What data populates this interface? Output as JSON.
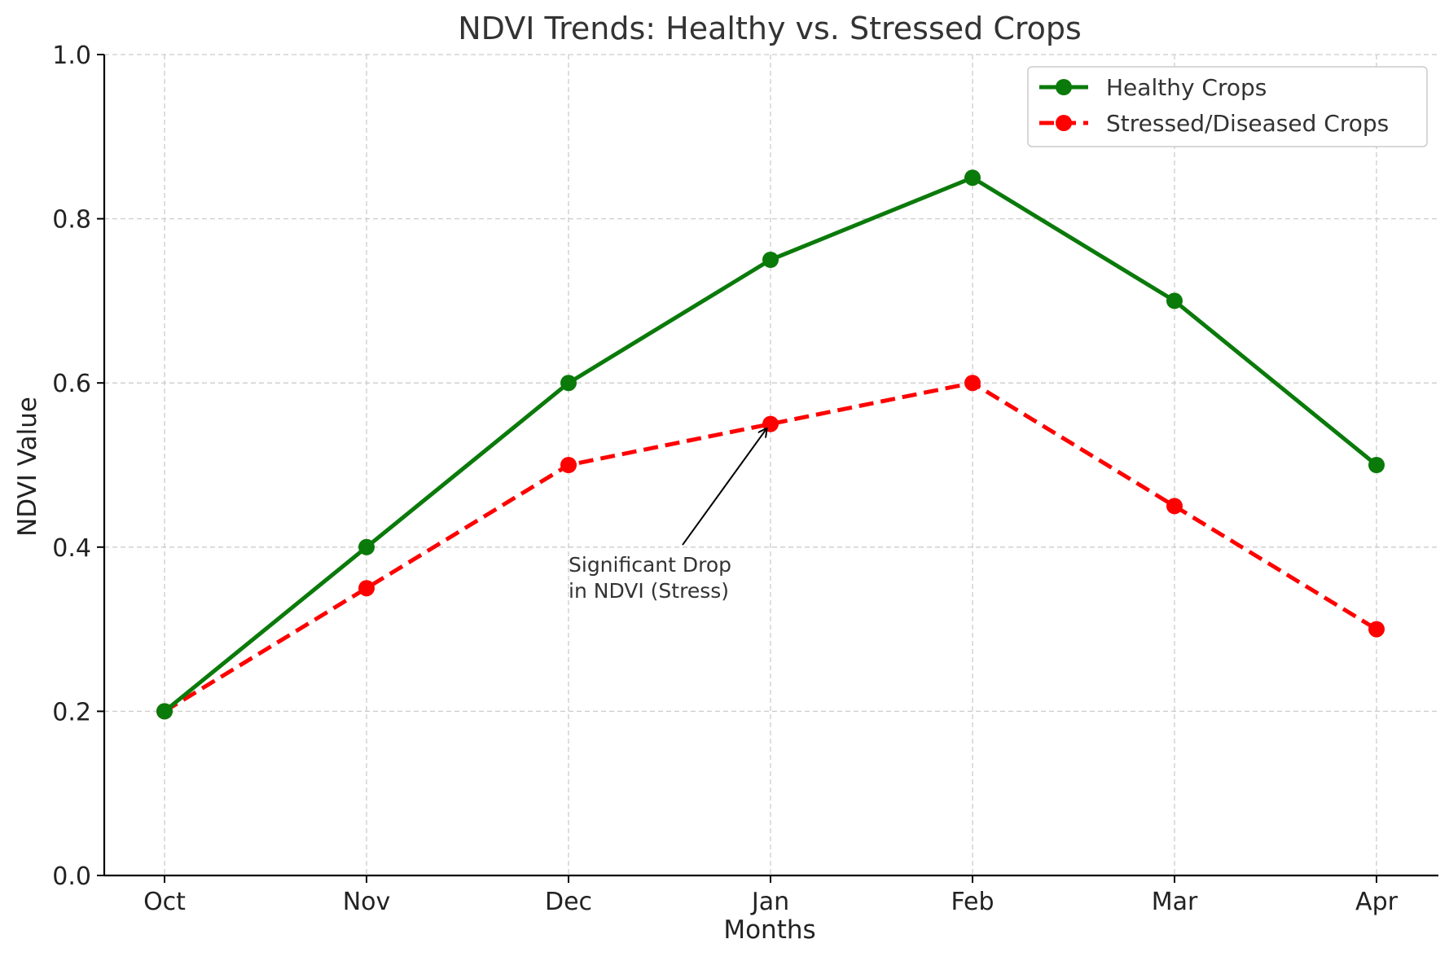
{
  "chart_data": {
    "type": "line",
    "title": "NDVI Trends: Healthy vs. Stressed Crops",
    "xlabel": "Months",
    "ylabel": "NDVI Value",
    "categories": [
      "Oct",
      "Nov",
      "Dec",
      "Jan",
      "Feb",
      "Mar",
      "Apr"
    ],
    "ylim": [
      0.0,
      1.0
    ],
    "yticks": [
      "0.0",
      "0.2",
      "0.4",
      "0.6",
      "0.8",
      "1.0"
    ],
    "grid": true,
    "legend_position": "top-right",
    "series": [
      {
        "name": "Healthy Crops",
        "values": [
          0.2,
          0.4,
          0.6,
          0.75,
          0.85,
          0.7,
          0.5
        ],
        "color": "#0a7a0a",
        "style": "solid"
      },
      {
        "name": "Stressed/Diseased Crops",
        "values": [
          0.2,
          0.35,
          0.5,
          0.55,
          0.6,
          0.45,
          0.3
        ],
        "color": "#ff0000",
        "style": "dashed"
      }
    ],
    "annotation": {
      "lines": [
        "Significant Drop",
        "in NDVI (Stress)"
      ],
      "target_category": "Jan",
      "target_value": 0.55,
      "text_category": "Dec",
      "text_value": 0.37
    }
  }
}
